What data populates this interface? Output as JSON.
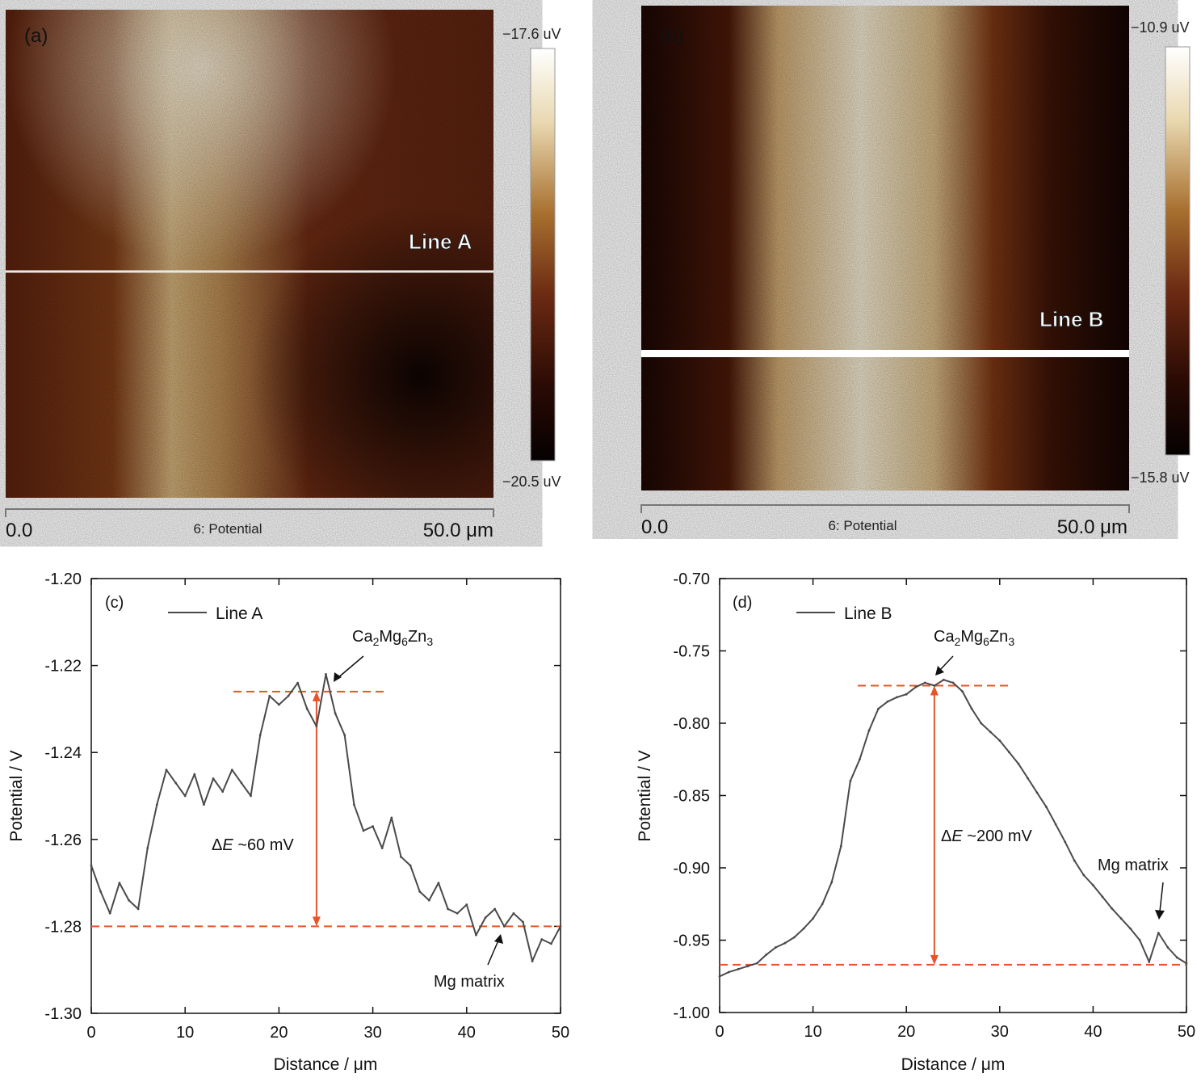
{
  "kpfm": {
    "panels": [
      {
        "label": "(a)",
        "line_label": "Line A",
        "scale_top": "−17.6 uV",
        "scale_bottom": "−20.5 uV",
        "axis_start": "0.0",
        "axis_end": "50.0 μm",
        "channel": "6: Potential"
      },
      {
        "label": "(b)",
        "line_label": "Line B",
        "scale_top": "−10.9 uV",
        "scale_bottom": "−15.8 uV",
        "axis_start": "0.0",
        "axis_end": "50.0 μm",
        "channel": "6: Potential"
      }
    ]
  },
  "colors": {
    "trace": "#4a4a4a",
    "reference": "#e8542a",
    "map_dark": "#0a0201",
    "map_mid": "#6b2a12",
    "map_light": "#fbf7ee"
  },
  "chart_data": [
    {
      "type": "line",
      "panel_label": "(c)",
      "legend": "Line A",
      "xlabel": "Distance / μm",
      "ylabel": "Potential / V",
      "xlim": [
        0,
        50
      ],
      "ylim": [
        -1.3,
        -1.2
      ],
      "xticks": [
        0,
        10,
        20,
        30,
        40,
        50
      ],
      "yticks": [
        -1.3,
        -1.28,
        -1.26,
        -1.24,
        -1.22,
        -1.2
      ],
      "ytick_labels": [
        "-1.30",
        "-1.28",
        "-1.26",
        "-1.24",
        "-1.22",
        "-1.20"
      ],
      "series": [
        {
          "name": "Line A",
          "x": [
            0,
            1,
            2,
            3,
            4,
            5,
            6,
            7,
            8,
            9,
            10,
            11,
            12,
            13,
            14,
            15,
            16,
            17,
            18,
            19,
            20,
            21,
            22,
            23,
            24,
            25,
            26,
            27,
            28,
            29,
            30,
            31,
            32,
            33,
            34,
            35,
            36,
            37,
            38,
            39,
            40,
            41,
            42,
            43,
            44,
            45,
            46,
            47,
            48,
            49,
            50
          ],
          "y": [
            -1.266,
            -1.272,
            -1.277,
            -1.27,
            -1.274,
            -1.276,
            -1.262,
            -1.252,
            -1.244,
            -1.247,
            -1.25,
            -1.245,
            -1.252,
            -1.246,
            -1.249,
            -1.244,
            -1.247,
            -1.25,
            -1.236,
            -1.227,
            -1.229,
            -1.227,
            -1.224,
            -1.23,
            -1.234,
            -1.222,
            -1.231,
            -1.236,
            -1.252,
            -1.258,
            -1.257,
            -1.262,
            -1.255,
            -1.264,
            -1.266,
            -1.272,
            -1.274,
            -1.27,
            -1.276,
            -1.277,
            -1.275,
            -1.282,
            -1.278,
            -1.276,
            -1.28,
            -1.277,
            -1.279,
            -1.288,
            -1.283,
            -1.284,
            -1.28
          ]
        }
      ],
      "annotations": {
        "phase_label": "Ca2Mg6Zn3",
        "delta": "ΔE ~60 mV",
        "matrix_label": "Mg matrix",
        "upper_ref": -1.226,
        "lower_ref": -1.28,
        "delta_x": 24
      }
    },
    {
      "type": "line",
      "panel_label": "(d)",
      "legend": "Line B",
      "xlabel": "Distance / μm",
      "ylabel": "Potential / V",
      "xlim": [
        0,
        50
      ],
      "ylim": [
        -1.0,
        -0.7
      ],
      "xticks": [
        0,
        10,
        20,
        30,
        40,
        50
      ],
      "yticks": [
        -1.0,
        -0.95,
        -0.9,
        -0.85,
        -0.8,
        -0.75,
        -0.7
      ],
      "ytick_labels": [
        "-1.00",
        "-0.95",
        "-0.90",
        "-0.85",
        "-0.80",
        "-0.75",
        "-0.70"
      ],
      "series": [
        {
          "name": "Line B",
          "x": [
            0,
            1,
            2,
            3,
            4,
            5,
            6,
            7,
            8,
            9,
            10,
            11,
            12,
            13,
            14,
            15,
            16,
            17,
            18,
            19,
            20,
            21,
            22,
            23,
            24,
            25,
            26,
            27,
            28,
            29,
            30,
            31,
            32,
            33,
            34,
            35,
            36,
            37,
            38,
            39,
            40,
            41,
            42,
            43,
            44,
            45,
            46,
            47,
            48,
            49,
            50
          ],
          "y": [
            -0.975,
            -0.972,
            -0.97,
            -0.968,
            -0.966,
            -0.96,
            -0.955,
            -0.952,
            -0.948,
            -0.942,
            -0.935,
            -0.925,
            -0.91,
            -0.885,
            -0.84,
            -0.825,
            -0.805,
            -0.79,
            -0.785,
            -0.782,
            -0.78,
            -0.775,
            -0.772,
            -0.774,
            -0.77,
            -0.772,
            -0.778,
            -0.79,
            -0.8,
            -0.806,
            -0.812,
            -0.82,
            -0.828,
            -0.838,
            -0.848,
            -0.858,
            -0.87,
            -0.882,
            -0.895,
            -0.905,
            -0.912,
            -0.92,
            -0.928,
            -0.935,
            -0.942,
            -0.95,
            -0.965,
            -0.945,
            -0.955,
            -0.962,
            -0.966
          ]
        }
      ],
      "annotations": {
        "phase_label": "Ca2Mg6Zn3",
        "delta": "ΔE ~200 mV",
        "matrix_label": "Mg matrix",
        "upper_ref": -0.774,
        "lower_ref": -0.967,
        "delta_x": 23
      }
    }
  ]
}
